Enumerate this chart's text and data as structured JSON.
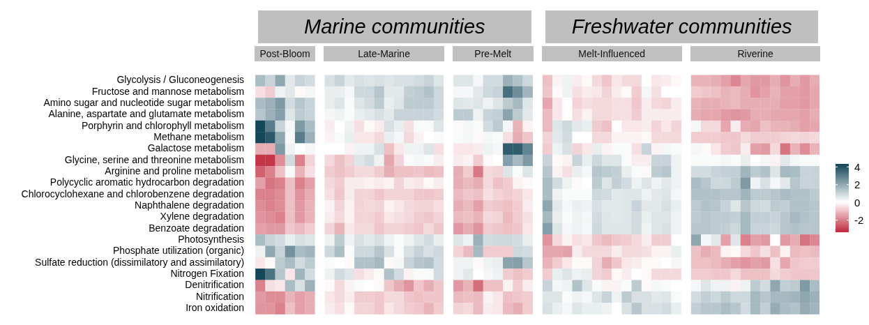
{
  "chart_data": {
    "type": "heatmap",
    "tick_labels": "y",
    "clim": [
      -3.4,
      4.3
    ],
    "cticks": [
      -2,
      0,
      2,
      4
    ],
    "annotations": [
      "Post-Bloom",
      "Late-Marine",
      "Pre-Melt",
      "Melt-Influenced",
      "Riverine",
      "Marine communities",
      "Freshwater communities"
    ],
    "categories": [
      null,
      null,
      null,
      null,
      null,
      null,
      null,
      null,
      null,
      null,
      null,
      null,
      null,
      null,
      null,
      null,
      null,
      null,
      null,
      null,
      null,
      null,
      null,
      null,
      null,
      null,
      null,
      null,
      null,
      null,
      null,
      null,
      null,
      null,
      null,
      null,
      null,
      null,
      null,
      null,
      null,
      null,
      null,
      null,
      null,
      null,
      null,
      null,
      null,
      null,
      null,
      null,
      null,
      null,
      null,
      null,
      null
    ],
    "y_categories": [
      "Glycolysis / Gluconeogenesis",
      "Fructose and mannose metabolism",
      "Amino sugar and nucleotide sugar metabolism",
      "Alanine, aspartate and glutamate metabolism",
      "Porphyrin and chlorophyll metabolism",
      "Methane metabolism",
      "Galactose metabolism",
      "Glycine, serine and threonine metabolism",
      "Arginine and proline metabolism",
      "Polycyclic aromatic hydrocarbon degradation",
      "Chlorocyclohexane and chlorobenzene degradation",
      "Naphthalene degradation",
      "Xylene degradation",
      "Benzoate degradation",
      "Photosynthesis",
      "Phosphate utilization (organic)",
      "Sulfate reduction (dissimilatory and assimilatory)",
      "Nitrogen Fixation",
      "Denitrification",
      "Nitrification",
      "Iron oxidation"
    ],
    "cells": [
      [
        1.5,
        1,
        2,
        0.5,
        1,
        0.8,
        null,
        0.7,
        1,
        0.5,
        0.7,
        0.6,
        0.7,
        0.6,
        0.7,
        0.7,
        0.8,
        1,
        0.6,
        null,
        0.6,
        0.6,
        0.2,
        0.8,
        0.8,
        1.8,
        1.4,
        0.9,
        null,
        -1,
        -0.2,
        0.3,
        -0.3,
        -0.1,
        -0.6,
        -0.9,
        -0.4,
        -0.6,
        -0.6,
        0,
        -0.4,
        -0.3,
        -0.1,
        null,
        -1.2,
        -1.2,
        -1.3,
        -1.5,
        -1.9,
        -1.4,
        -1.6,
        -1.6,
        -1.3,
        -1.7,
        -1.3,
        -1.6,
        -1.3
      ],
      [
        -0.5,
        -0.8,
        0.3,
        0.5,
        -0.1,
        0.2,
        null,
        0.4,
        0.4,
        0.2,
        0.9,
        0.9,
        1.3,
        0.5,
        0.5,
        1.1,
        1.2,
        1.4,
        0.9,
        null,
        0.2,
        0.2,
        0.5,
        0.9,
        1,
        3.3,
        2.6,
        1.7,
        null,
        -0.9,
        -0.1,
        0.3,
        -0.5,
        -0.3,
        -0.4,
        -0.7,
        -0.3,
        -0.1,
        -0.8,
        0.2,
        -0.5,
        0,
        0,
        null,
        -0.8,
        -0.9,
        -1,
        -1.2,
        -1.1,
        -1.3,
        -1.7,
        -1.5,
        -1.2,
        -1.5,
        -1.5,
        -1.6,
        -1.4
      ],
      [
        1.5,
        1.8,
        2.3,
        0.8,
        1.3,
        1,
        null,
        0.4,
        0.6,
        0.1,
        0.6,
        0.8,
        1.2,
        0.4,
        0.6,
        1.2,
        1.2,
        1.2,
        0.9,
        null,
        0.6,
        0.5,
        0.6,
        0.3,
        0.6,
        1.2,
        1.6,
        0.6,
        null,
        -1.4,
        -0.4,
        0,
        -0.7,
        -0.5,
        -0.6,
        -0.6,
        -0.5,
        -0.5,
        -0.9,
        -0.3,
        -0.6,
        -0.7,
        -0.3,
        null,
        -1.2,
        -1.3,
        -1.3,
        -1.2,
        -1.1,
        -1.3,
        -1.3,
        -1.3,
        -1.3,
        -1.5,
        -1.5,
        -1.6,
        -1.4
      ],
      [
        1.3,
        1.8,
        2.2,
        0.6,
        1.2,
        1,
        null,
        0.2,
        0.3,
        0.1,
        0.4,
        0.5,
        0.7,
        0.5,
        1,
        1,
        1,
        1,
        0.8,
        null,
        1.2,
        1.2,
        0.3,
        1,
        1.1,
        2.1,
        1.2,
        0.5,
        null,
        -1.1,
        -0.4,
        0,
        -0.5,
        -0.2,
        -0.6,
        -0.6,
        -0.5,
        -0.5,
        -0.8,
        -0.3,
        -0.3,
        -0.3,
        -0.3,
        null,
        -1.3,
        -1.4,
        -1.4,
        -1.6,
        -1.7,
        -1.6,
        -1.3,
        -1.3,
        -1.4,
        -1.4,
        -1.4,
        -1.5,
        -1.3
      ],
      [
        4.2,
        3,
        1,
        0.2,
        2.3,
        1.5,
        null,
        -0.3,
        0,
        0.3,
        -0.5,
        -0.1,
        -0.3,
        0.7,
        0.4,
        -0.5,
        0.1,
        0.1,
        0.6,
        null,
        -0.1,
        0.2,
        0.1,
        0.8,
        1.2,
        0.2,
        -1.2,
        -0.2,
        null,
        -1.1,
        0.6,
        0.9,
        0.5,
        0.4,
        -0.8,
        -1,
        0,
        -0.4,
        -0.4,
        -0.3,
        -0.7,
        -0.4,
        -0.7,
        null,
        0.2,
        -0.6,
        -0.6,
        -1.4,
        -0.3,
        -1.3,
        -1.4,
        -1,
        -1.2,
        -1.2,
        -1.3,
        -1.5,
        -1.4
      ],
      [
        4.2,
        3.8,
        2,
        0.1,
        3,
        1.8,
        null,
        -0.2,
        0.1,
        0.4,
        -0.4,
        -0.4,
        -0.6,
        0.4,
        0.2,
        -0.6,
        -0.2,
        0,
        0.1,
        null,
        0.1,
        0.2,
        -0.1,
        0.2,
        0.1,
        -0.5,
        -1.3,
        -0.9,
        null,
        -0.7,
        0.5,
        0.8,
        0,
        0,
        -0.6,
        -0.6,
        -0.2,
        -0.2,
        -0.2,
        -0.1,
        -0.6,
        -0.6,
        -0.6,
        null,
        -0.8,
        -0.8,
        -0.8,
        -0.9,
        -0.9,
        -0.6,
        -0.8,
        -0.8,
        -0.8,
        -0.7,
        -0.6,
        -0.7,
        -0.6
      ],
      [
        -1.3,
        -1.3,
        2.3,
        0.3,
        0,
        0.2,
        null,
        0,
        0,
        -0.2,
        0.3,
        0.3,
        0.7,
        -1,
        -0.4,
        0.3,
        0.3,
        0.6,
        -0.5,
        null,
        -0.4,
        -0.4,
        -0.3,
        0.3,
        0.2,
        3.7,
        3.7,
        2.8,
        null,
        -0.8,
        0.3,
        0.7,
        -0.7,
        -0.4,
        0.4,
        -0.2,
        0.1,
        0.1,
        -0.5,
        1,
        -0.2,
        0.2,
        0.1,
        null,
        0.2,
        -0.1,
        -0.4,
        -0.8,
        -0.9,
        -0.3,
        -1.5,
        -1.6,
        -0.6,
        -2.2,
        -1.2,
        -1.8,
        -1.2
      ],
      [
        -3.2,
        -3.2,
        -1.8,
        0.8,
        -2,
        -0.7,
        null,
        -0.6,
        -1,
        -0.7,
        0.6,
        0.8,
        0.3,
        -1.4,
        -0.7,
        0.1,
        0.2,
        0.1,
        -0.3,
        null,
        -0.3,
        -0.2,
        -0.8,
        -0.1,
        0,
        2.2,
        1.6,
        2.3,
        null,
        1,
        -0.1,
        -0.2,
        1,
        0.4,
        0.9,
        0.6,
        0.6,
        0.1,
        -0.3,
        -0.3,
        1,
        1,
        0.3,
        null,
        0.1,
        0.1,
        0.1,
        0.2,
        0.1,
        0.4,
        0,
        0.2,
        -0.2,
        0.5,
        0.2,
        0.1,
        0.1
      ],
      [
        -2.5,
        -2,
        -1,
        0.1,
        -1.2,
        -0.5,
        null,
        -0.8,
        -1,
        -0.8,
        -0.6,
        -0.6,
        -0.8,
        -1.3,
        -1,
        -1,
        -0.9,
        -1.1,
        -1,
        null,
        -1.3,
        -0.8,
        -2.1,
        -0.6,
        -0.7,
        0.6,
        0.1,
        0.6,
        null,
        1.3,
        -0.2,
        -0.5,
        0.4,
        0.2,
        1.3,
        1.2,
        1.1,
        0.4,
        0.1,
        -0.1,
        1.2,
        1.3,
        0.3,
        null,
        0.8,
        0.8,
        1,
        1.1,
        1.1,
        1.7,
        1.2,
        1.4,
        0.6,
        1.6,
        1.5,
        1,
        1
      ],
      [
        -1.5,
        -2.2,
        -2,
        -1,
        -2,
        -1.5,
        null,
        -0.6,
        -0.8,
        -0.3,
        -0.3,
        -0.2,
        -0.3,
        -0.2,
        -0.7,
        -0.3,
        -0.4,
        -0.1,
        -0.3,
        null,
        -1.3,
        -1.1,
        -1.3,
        -0.6,
        -1,
        -0.8,
        -0.2,
        -0.1,
        null,
        1.5,
        0.8,
        0.3,
        -0.1,
        0,
        1.2,
        0.6,
        1.1,
        0.8,
        0.3,
        0.6,
        0.3,
        0.5,
        0.3,
        null,
        1.5,
        1.3,
        0.9,
        0.9,
        1.2,
        2.3,
        0.3,
        0.7,
        0.2,
        0.5,
        1.3,
        1,
        1
      ],
      [
        -2,
        -2,
        -1.8,
        -1,
        -1.7,
        -1.3,
        null,
        -0.5,
        -0.9,
        -0.3,
        -0.7,
        -0.7,
        -0.9,
        -0.7,
        -0.7,
        -0.7,
        -0.9,
        -0.9,
        -0.8,
        null,
        -1.1,
        -0.9,
        -1,
        -0.5,
        -0.7,
        -0.8,
        -0.7,
        -0.4,
        null,
        1.5,
        0.3,
        0.1,
        0.1,
        0.1,
        0.9,
        0.8,
        0.5,
        0.6,
        0.6,
        0.3,
        0.5,
        0.6,
        0.2,
        null,
        1.4,
        1.4,
        1.4,
        1.3,
        1.3,
        1.7,
        1.2,
        1.2,
        1.3,
        1.5,
        1.4,
        1.4,
        1.2
      ],
      [
        -1.8,
        -2,
        -1.8,
        -1,
        -1.6,
        -1.2,
        null,
        -0.2,
        -0.7,
        -0.2,
        -0.7,
        -0.6,
        -0.7,
        -0.2,
        -0.4,
        -0.6,
        -0.7,
        -0.7,
        -0.5,
        null,
        -1.3,
        -1.1,
        -1.5,
        -0.8,
        -0.9,
        -1,
        -0.8,
        -0.3,
        null,
        2,
        0.5,
        0.2,
        0.4,
        0.3,
        0.7,
        0.5,
        0.5,
        0.6,
        1,
        0.5,
        0.5,
        0.7,
        0.4,
        null,
        1.2,
        1.4,
        1.3,
        1,
        0.6,
        1.3,
        0.9,
        0.8,
        1.2,
        1.1,
        1.4,
        1.4,
        1.3
      ],
      [
        -1.7,
        -1.8,
        -2,
        -1,
        -1.6,
        -1.2,
        null,
        -0.3,
        -0.6,
        -0.2,
        -0.7,
        -0.7,
        -0.8,
        -0.4,
        -0.5,
        -0.6,
        -0.8,
        -0.9,
        -0.7,
        null,
        -1.1,
        -1,
        -1.2,
        -0.6,
        -0.7,
        -1.1,
        -0.8,
        -0.5,
        null,
        1.6,
        0.4,
        0.1,
        0.3,
        0.2,
        0.8,
        0.6,
        0.5,
        0.6,
        0.8,
        0.4,
        0.6,
        0.6,
        0.3,
        null,
        1.2,
        1.3,
        1.2,
        1.2,
        1.1,
        1.6,
        1.1,
        1.1,
        1,
        1.3,
        1.6,
        1.4,
        1.3
      ],
      [
        -1.5,
        -1.6,
        -1.6,
        -0.9,
        -1.1,
        -0.8,
        null,
        -0.7,
        -1.2,
        -0.4,
        -0.6,
        -0.6,
        -0.9,
        -0.7,
        -0.7,
        -0.8,
        -0.9,
        -0.6,
        -0.9,
        null,
        -1.6,
        -1.3,
        -1.7,
        -0.8,
        -0.9,
        -1,
        -0.9,
        -0.4,
        null,
        2.2,
        0.6,
        0.2,
        0.3,
        0.2,
        0.9,
        0.6,
        0.6,
        0.6,
        0.8,
        0.3,
        0.6,
        0.7,
        0.3,
        null,
        1.3,
        1.3,
        1.2,
        1.1,
        0.9,
        1.6,
        1,
        1,
        0.9,
        1.3,
        1.4,
        1.3,
        1.3
      ],
      [
        1.5,
        1,
        0.8,
        0.4,
        0.7,
        0.6,
        null,
        0.3,
        1.2,
        0.3,
        0.7,
        0.5,
        0.7,
        0.3,
        0.1,
        0.3,
        0.6,
        0.8,
        0.4,
        null,
        0.6,
        0.3,
        1.8,
        0.8,
        0.9,
        0.9,
        0.8,
        0.4,
        null,
        -1.7,
        -0.6,
        -0.2,
        -0.5,
        -0.4,
        -0.9,
        -1.1,
        -0.9,
        -0.8,
        -0.6,
        -0.3,
        -0.8,
        -0.8,
        0,
        null,
        2,
        0.2,
        0.5,
        -1.5,
        0.6,
        -2,
        -1.5,
        -1.6,
        0,
        -1.6,
        -1.3,
        -2.2,
        -1.9
      ],
      [
        0.3,
        2,
        1,
        2.5,
        1.5,
        1.7,
        null,
        0.9,
        1.5,
        0.1,
        0.9,
        0.9,
        1.3,
        0.7,
        0.1,
        0.7,
        1,
        0.7,
        0.9,
        null,
        -0.7,
        -1.1,
        1.6,
        -0.8,
        -0.8,
        -0.8,
        0.9,
        0.8,
        null,
        -1.4,
        -1.4,
        -1.5,
        -0.3,
        -0.6,
        -0.6,
        -0.6,
        -0.3,
        -0.6,
        -0.6,
        -0.5,
        -0.2,
        -0.2,
        0.4,
        null,
        -1,
        -1.3,
        -1.1,
        -0.2,
        -0.1,
        -0.6,
        -0.9,
        -0.5,
        -1,
        -0.2,
        -1.1,
        -1,
        -1.1
      ],
      [
        -0.4,
        -0.1,
        1.2,
        1.5,
        0.8,
        1.2,
        null,
        0.1,
        0,
        -0.1,
        1.4,
        1.4,
        1.6,
        -0.1,
        0.2,
        1,
        1.3,
        1.4,
        0.8,
        null,
        0.3,
        0.3,
        -0.1,
        0.3,
        0.4,
        2.1,
        2.2,
        1.3,
        null,
        -1.2,
        -0.8,
        -0.4,
        -0.1,
        -0.1,
        -0.7,
        -1.3,
        -0.9,
        -0.4,
        -0.3,
        -0.1,
        -0.1,
        0,
        0.2,
        null,
        -1,
        -1,
        -1.1,
        -1.3,
        -1.5,
        -1.7,
        -1.5,
        -1.6,
        -0.5,
        -1.4,
        -0.9,
        -0.8,
        -0.8
      ],
      [
        4.2,
        3.2,
        1.3,
        -0.4,
        1.7,
        0.8,
        null,
        0.3,
        0.8,
        0.6,
        -0.5,
        -0.3,
        -0.1,
        1.4,
        0.8,
        -0.2,
        0.1,
        0.1,
        0.8,
        null,
        0.3,
        0.5,
        0,
        0.2,
        0.3,
        -0.8,
        -1,
        -0.8,
        null,
        -0.8,
        0.4,
        0.6,
        0.3,
        0.4,
        -0.7,
        -0.8,
        -0.1,
        -0.3,
        0,
        -0.1,
        -0.6,
        -0.6,
        -0.6,
        null,
        -0.8,
        -0.8,
        -0.9,
        -0.9,
        -0.6,
        -1,
        -1,
        -1,
        -0.6,
        -0.8,
        -0.9,
        -0.9,
        -0.9
      ],
      [
        -2,
        -0.5,
        -0.4,
        1.5,
        0.7,
        1.8,
        null,
        -0.1,
        -0.6,
        -0.2,
        0.1,
        0,
        -0.1,
        -0.9,
        -1.3,
        -1.7,
        -0.9,
        -1.3,
        -0.9,
        null,
        -1.6,
        -1.2,
        -2.3,
        -1,
        -1,
        -0.2,
        -0.8,
        -0.3,
        null,
        1,
        0.2,
        0.3,
        1.4,
        0.6,
        0.1,
        -0.2,
        -0.2,
        0.1,
        1.2,
        -0.1,
        0.2,
        0.1,
        0,
        null,
        0.2,
        0.6,
        0.3,
        0.3,
        -0.2,
        0.3,
        1.2,
        0.8,
        2,
        1.1,
        1.2,
        2.3,
        1.5
      ],
      [
        -1.6,
        -1.8,
        -1.8,
        -1.2,
        -1.5,
        -1.3,
        null,
        -0.4,
        -0.6,
        -0.3,
        -0.8,
        -0.8,
        -0.9,
        -0.6,
        -0.6,
        -0.9,
        -1,
        -0.9,
        -0.9,
        null,
        -1.1,
        -1,
        -1.1,
        -0.2,
        -0.4,
        -1,
        -0.9,
        -0.8,
        null,
        0.6,
        0.6,
        0.1,
        0.3,
        0.2,
        0.6,
        1,
        0.3,
        1.2,
        0.7,
        0.7,
        0.5,
        0.6,
        0.1,
        null,
        0.8,
        1.1,
        0.9,
        1.2,
        0.9,
        0.9,
        1.6,
        1.3,
        1.6,
        1.6,
        1.7,
        2,
        1.8
      ],
      [
        -1.7,
        -1.7,
        -2,
        -1,
        -1.5,
        -1.3,
        null,
        -0.3,
        -0.5,
        -0.1,
        -0.7,
        -0.7,
        -0.9,
        -0.4,
        -0.6,
        -0.8,
        -0.9,
        -1.2,
        -0.8,
        null,
        -0.7,
        -0.6,
        -1.1,
        -0.3,
        -0.4,
        -1.1,
        -1.3,
        -0.8,
        null,
        0.7,
        0.4,
        0.2,
        0.6,
        0.4,
        0.4,
        0.3,
        0,
        0.7,
        1.3,
        0.7,
        0.7,
        0.8,
        0.4,
        null,
        1.1,
        1.3,
        1.3,
        1.5,
        1.3,
        0.8,
        1.6,
        1.1,
        1.9,
        1.5,
        1.4,
        1.9,
        1.7
      ]
    ]
  }
}
